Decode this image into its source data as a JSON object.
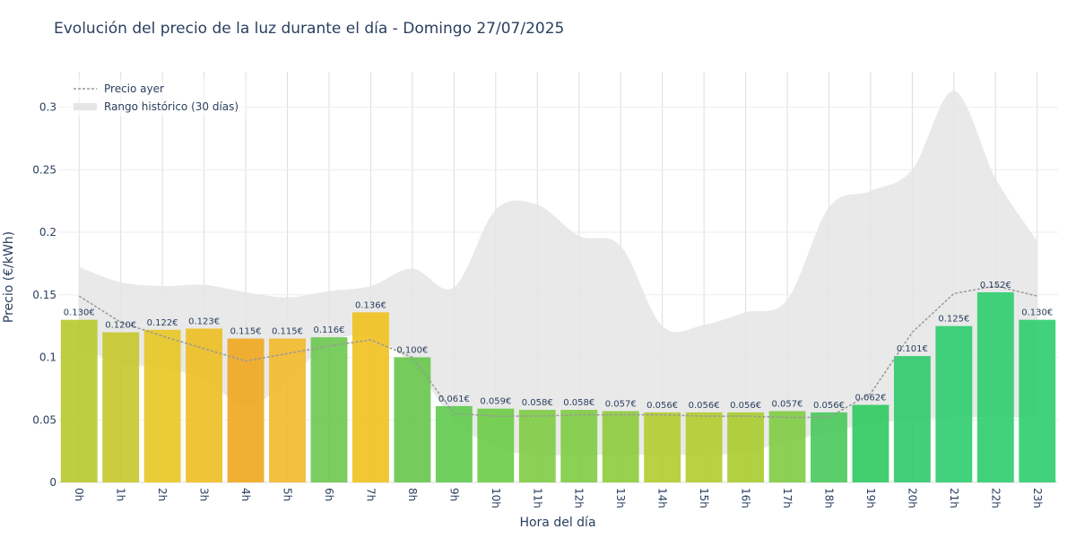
{
  "chart_data": {
    "type": "bar",
    "title": "Evolución del precio de la luz durante el día - Domingo 27/07/2025",
    "xlabel": "Hora del día",
    "ylabel": "Precio (€/kWh)",
    "ylim": [
      0,
      0.33
    ],
    "yticks": [
      "0",
      "0.05",
      "0.1",
      "0.15",
      "0.2",
      "0.25",
      "0.3"
    ],
    "grid": true,
    "legend_position": "top-left",
    "categories": [
      "0h",
      "1h",
      "2h",
      "3h",
      "4h",
      "5h",
      "6h",
      "7h",
      "8h",
      "9h",
      "10h",
      "11h",
      "12h",
      "13h",
      "14h",
      "15h",
      "16h",
      "17h",
      "18h",
      "19h",
      "20h",
      "21h",
      "22h",
      "23h"
    ],
    "series": [
      {
        "type": "bar",
        "values": [
          0.13,
          0.12,
          0.122,
          0.123,
          0.115,
          0.115,
          0.116,
          0.136,
          0.1,
          0.061,
          0.059,
          0.058,
          0.058,
          0.057,
          0.056,
          0.056,
          0.056,
          0.057,
          0.056,
          0.062,
          0.101,
          0.125,
          0.152,
          0.13
        ],
        "labels": [
          "0.130€",
          "0.120€",
          "0.122€",
          "0.123€",
          "0.115€",
          "0.115€",
          "0.116€",
          "0.136€",
          "0.100€",
          "0.061€",
          "0.059€",
          "0.058€",
          "0.058€",
          "0.057€",
          "0.056€",
          "0.056€",
          "0.056€",
          "0.057€",
          "0.056€",
          "0.062€",
          "0.101€",
          "0.125€",
          "0.152€",
          "0.130€"
        ],
        "colors": [
          "#b8c92b",
          "#c5c72b",
          "#e8c722",
          "#eebe21",
          "#f0a71e",
          "#f2b92a",
          "#6cc84f",
          "#f0c11e",
          "#66c64b",
          "#5fcb4f",
          "#6ccc45",
          "#7ecc42",
          "#7ecc42",
          "#8ccc3a",
          "#b2cc2c",
          "#b2cc2c",
          "#a9cc2f",
          "#7ecc42",
          "#49c85a",
          "#2fca60",
          "#2fca6a",
          "#2dcc6e",
          "#2dcd6e",
          "#2dcd6e"
        ]
      },
      {
        "name": "Precio ayer",
        "type": "line",
        "color": "#999999",
        "values": [
          0.149,
          0.128,
          0.117,
          0.107,
          0.097,
          0.103,
          0.109,
          0.114,
          0.1,
          0.055,
          0.053,
          0.053,
          0.054,
          0.054,
          0.054,
          0.053,
          0.053,
          0.052,
          0.052,
          0.071,
          0.12,
          0.151,
          0.157,
          0.149
        ]
      },
      {
        "name": "Rango histórico (30 días)",
        "type": "area-range",
        "color": "#e5e5e5",
        "upper": [
          0.172,
          0.16,
          0.157,
          0.158,
          0.152,
          0.148,
          0.153,
          0.157,
          0.171,
          0.156,
          0.218,
          0.222,
          0.197,
          0.189,
          0.125,
          0.126,
          0.136,
          0.146,
          0.22,
          0.233,
          0.25,
          0.313,
          0.243,
          0.193
        ],
        "lower": [
          0.107,
          0.096,
          0.091,
          0.083,
          0.061,
          0.081,
          0.112,
          0.116,
          0.094,
          0.05,
          0.028,
          0.022,
          0.022,
          0.022,
          0.022,
          0.022,
          0.024,
          0.033,
          0.04,
          0.047,
          0.05,
          0.052,
          0.052,
          0.052
        ]
      }
    ]
  }
}
